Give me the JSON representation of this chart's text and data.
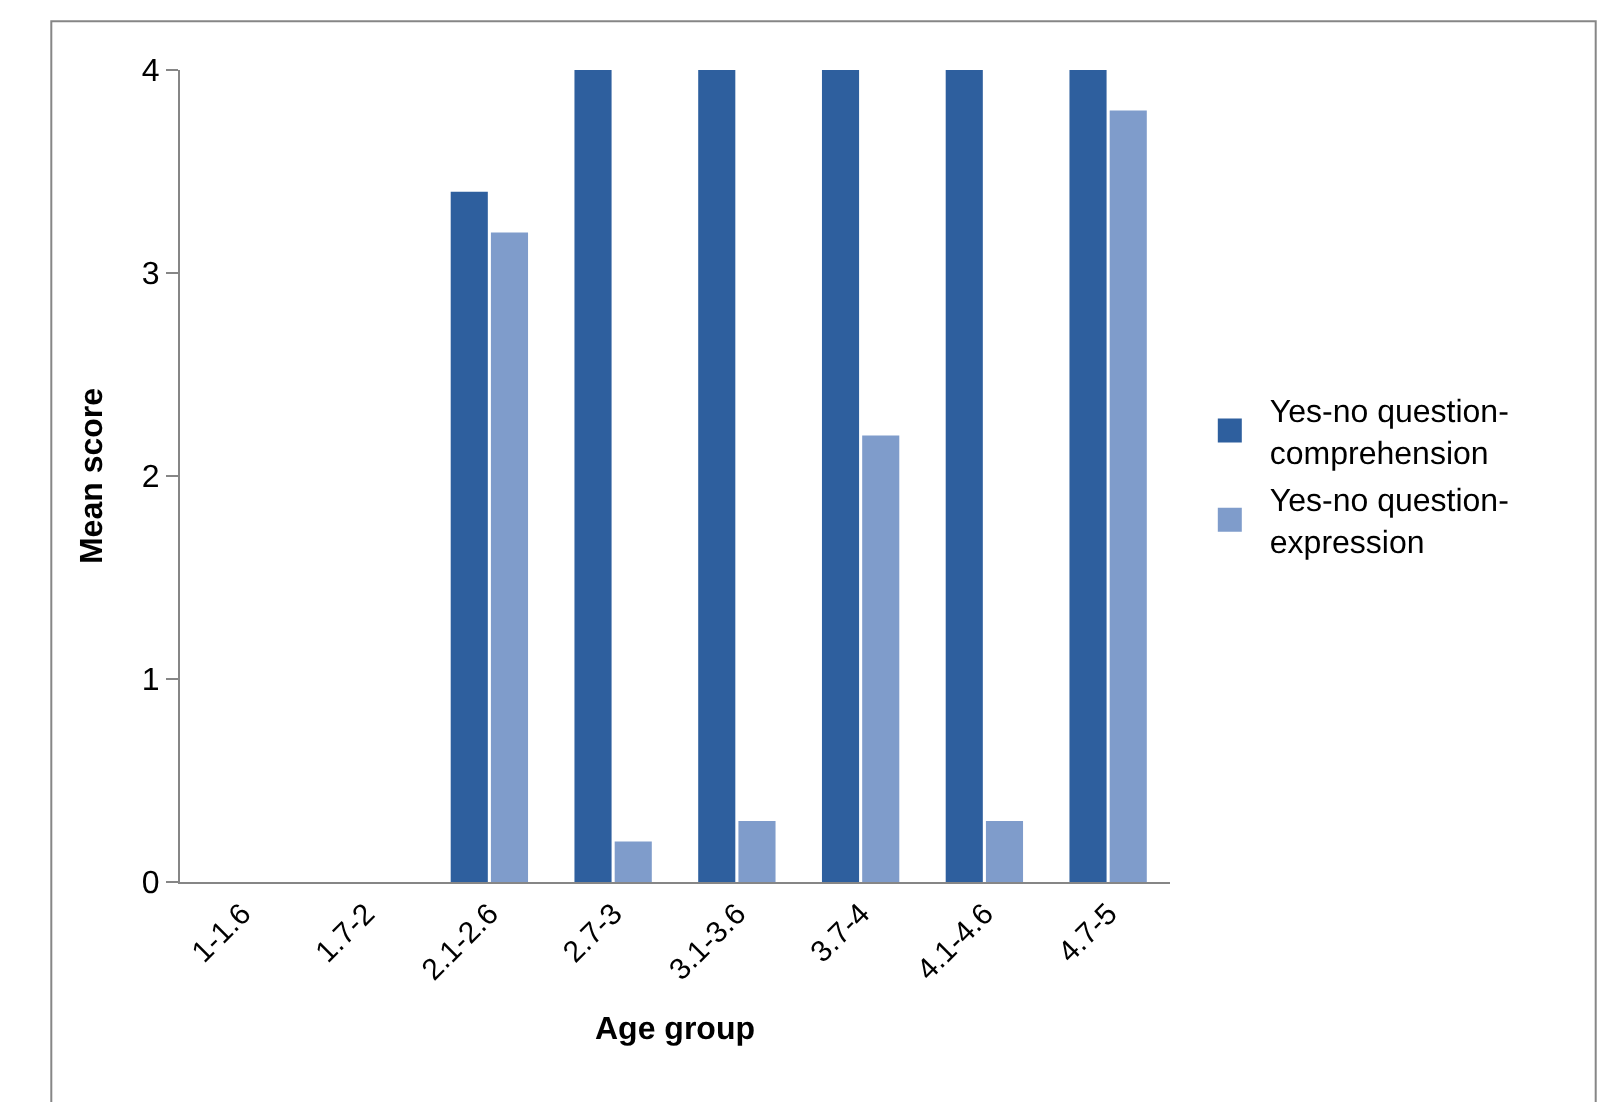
{
  "chart_data": {
    "type": "bar",
    "xlabel": "Age group",
    "ylabel": "Mean score",
    "categories": [
      "1-1.6",
      "1.7-2",
      "2.1-2.6",
      "2.7-3",
      "3.1-3.6",
      "3.7-4",
      "4.1-4.6",
      "4.7-5"
    ],
    "series": [
      {
        "name": "Yes-no question-comprehension",
        "color": "#2e5f9e",
        "values": [
          0,
          0,
          3.4,
          4,
          4,
          4,
          4,
          4
        ]
      },
      {
        "name": "Yes-no question-expression",
        "color": "#7f9ccb",
        "values": [
          0,
          0,
          3.2,
          0.2,
          0.3,
          2.2,
          0.3,
          3.8
        ]
      }
    ],
    "ylim": [
      0,
      4
    ],
    "yticks": [
      0,
      1,
      2,
      3,
      4
    ],
    "legend": "right"
  }
}
